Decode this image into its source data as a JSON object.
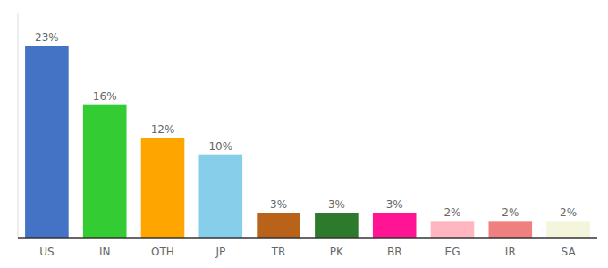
{
  "chart_data": {
    "type": "bar",
    "categories": [
      "US",
      "IN",
      "OTH",
      "JP",
      "TR",
      "PK",
      "BR",
      "EG",
      "IR",
      "SA"
    ],
    "values": [
      23,
      16,
      12,
      10,
      3,
      3,
      3,
      2,
      2,
      2
    ],
    "value_labels": [
      "23%",
      "16%",
      "12%",
      "10%",
      "3%",
      "3%",
      "3%",
      "2%",
      "2%",
      "2%"
    ],
    "colors": [
      "#4472C4",
      "#33CC33",
      "#FFA500",
      "#87CEEB",
      "#B8621A",
      "#2D7A2D",
      "#FF1493",
      "#FFB6C1",
      "#F08080",
      "#F5F5DC"
    ],
    "ylim": [
      0,
      27
    ],
    "data_labels": true,
    "tick_labels": "x",
    "grid": false
  }
}
